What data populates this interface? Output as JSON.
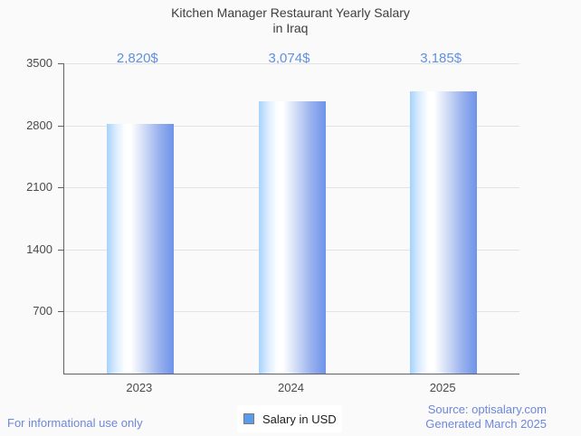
{
  "title": {
    "line1": "Kitchen Manager Restaurant Yearly Salary",
    "line2": "in Iraq"
  },
  "chart_data": {
    "type": "bar",
    "categories": [
      "2023",
      "2024",
      "2025"
    ],
    "values": [
      2820,
      3074,
      3185
    ],
    "value_labels": [
      "2,820$",
      "3,074$",
      "3,185$"
    ],
    "series": [
      {
        "name": "Salary in USD",
        "values": [
          2820,
          3074,
          3185
        ]
      }
    ],
    "title": "Kitchen Manager Restaurant Yearly Salary in Iraq",
    "xlabel": "",
    "ylabel": "",
    "ylim": [
      0,
      3500
    ],
    "yticks": [
      700,
      1400,
      2100,
      2800,
      3500
    ],
    "grid": "horizontal",
    "legend_position": "bottom-center"
  },
  "legend": {
    "label": "Salary in USD",
    "swatch_color": "#5b9bea"
  },
  "footer": {
    "left": "For informational use only",
    "source": "Source: optisalary.com",
    "generated": "Generated March 2025"
  },
  "colors": {
    "background": "#fafafa",
    "value_label": "#6090e0",
    "footer_text": "#6e87db",
    "axis_line": "#616161",
    "gridline": "#e3e3e3",
    "bar_gradient": [
      "#a6d2fc",
      "#ffffff",
      "#6e93e9"
    ]
  }
}
